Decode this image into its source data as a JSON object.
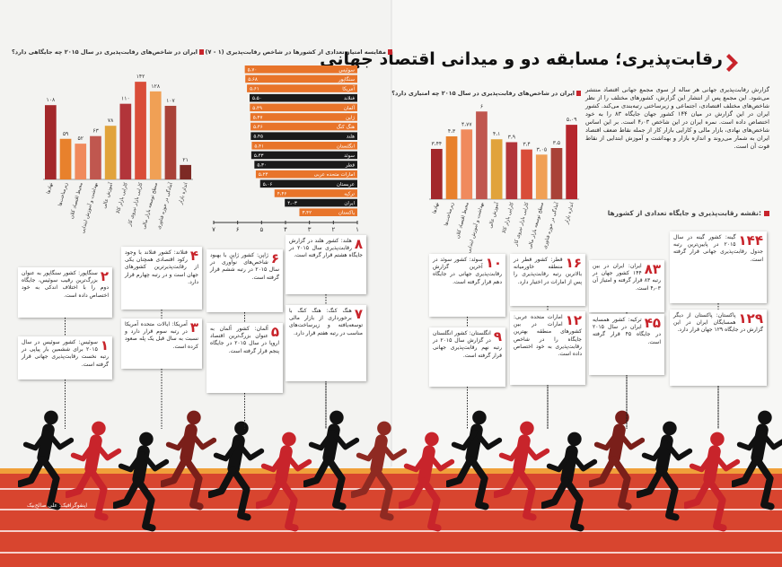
{
  "title": "رقابت‌پذیری؛ مسابقه دو و میدانی اقتصاد جهانی",
  "intro": "گزارش رقابت‌پذیری جهانی هر ساله از سوی مجمع جهانی اقتصاد منتشر می‌شود. این مجمع پس از انتشار این گزارش، کشورهای مختلف را از نظر شاخص‌های مختلف اقتصادی، اجتماعی و زیرساختی رتبه‌بندی می‌کند. کشور ایران در این گزارش در میان ۱۴۴ کشور جهان جایگاه ۸۳ را به خود اختصاص داده است. نمره ایران در این شاخص ۴٫۰۳ است. بر این اساس شاخص‌های نهادی، بازار مالی و کارایی بازار کار از جمله نقاط ضعف اقتصاد ایران به شمار می‌روند و اندازه بازار و بهداشت و آموزش ابتدایی از نقاط قوت آن است.",
  "map_heading": "نقشه رقابت‌پذیری و جایگاه تعدادی از کشورها:",
  "credit": "اینفوگرافیک: علی صالح‌بیک",
  "chart_data": [
    {
      "type": "bar",
      "title": "ایران در شاخص‌های رقابت‌پذیری در سال ۲۰۱۵ چه جایگاهی دارد؟",
      "categories": [
        "نهادها",
        "زیرساخت‌ها",
        "محیط اقتصاد کلان",
        "بهداشت و آموزش ابتدایی",
        "آموزش عالی",
        "کارایی بازار کالا",
        "کارایی بازار نیروی کار",
        "سطح توسعه بازار مالی",
        "آمادگی در حوزه فناوری",
        "اندازه بازار"
      ],
      "values": [
        108,
        59,
        52,
        63,
        78,
        110,
        142,
        128,
        107,
        21
      ],
      "value_labels": [
        "۱۰۸",
        "۵۹",
        "۵۲",
        "۶۳",
        "۷۸",
        "۱۱۰",
        "۱۴۲",
        "۱۲۸",
        "۱۰۷",
        "۲۱"
      ],
      "colors": [
        "#a3282b",
        "#e8812c",
        "#f08a5d",
        "#c0574f",
        "#e1a33b",
        "#b2353a",
        "#d94d39",
        "#f0a055",
        "#a94238",
        "#7d2a25"
      ],
      "ylim": [
        0,
        150
      ]
    },
    {
      "type": "hbar",
      "title": "مقایسه امتیاز تعدادی از کشورها در شاخص رقابت‌پذیری (۱ - ۷)",
      "categories": [
        "سوئیس",
        "سنگاپور",
        "آمریکا",
        "فنلاند",
        "آلمان",
        "ژاپن",
        "هنگ کنگ",
        "هلند",
        "انگلستان",
        "سوئد",
        "قطر",
        "امارات متحده عربی",
        "عربستان",
        "ترکیه",
        "ایران",
        "پاکستان"
      ],
      "values": [
        5.7,
        5.68,
        5.61,
        5.5,
        5.49,
        5.47,
        5.46,
        5.45,
        5.41,
        5.43,
        5.3,
        5.24,
        5.06,
        4.46,
        4.03,
        3.42
      ],
      "value_labels": [
        "۵،۷۰",
        "۵،۶۸",
        "۵،۶۱",
        "۵،۵۰",
        "۵،۴۹",
        "۵،۴۷",
        "۵،۴۶",
        "۵،۴۵",
        "۵،۴۱",
        "۵،۴۳",
        "۵،۳۰",
        "۵،۲۴",
        "۵،۰۶",
        "۴،۴۶",
        "۴،۰۳",
        "۳،۴۲"
      ],
      "colors": [
        "#e8742a",
        "#e8742a",
        "#e8742a",
        "#1a1a1a",
        "#e8742a",
        "#e8742a",
        "#e8742a",
        "#1a1a1a",
        "#e8742a",
        "#1a1a1a",
        "#1a1a1a",
        "#e8742a",
        "#1a1a1a",
        "#e8742a",
        "#1a1a1a",
        "#e8742a"
      ],
      "xlim": [
        1,
        7
      ],
      "xticks": [
        {
          "value": 7,
          "label": "۷"
        },
        {
          "value": 6,
          "label": "۶"
        },
        {
          "value": 5,
          "label": "۵"
        },
        {
          "value": 4,
          "label": "۴"
        },
        {
          "value": 3,
          "label": "۳"
        },
        {
          "value": 2,
          "label": "۲"
        },
        {
          "value": 1,
          "label": "۱"
        }
      ]
    },
    {
      "type": "bar",
      "title": "ایران در شاخص‌های رقابت‌پذیری در سال ۲۰۱۵ چه امتیازی دارد؟",
      "categories": [
        "نهادها",
        "زیرساخت‌ها",
        "محیط اقتصاد کلان",
        "بهداشت و آموزش ابتدایی",
        "آموزش عالی",
        "کارایی بازار کالا",
        "کارایی بازار نیروی کار",
        "سطح توسعه بازار مالی",
        "آمادگی در حوزه فناوری",
        "اندازه بازار"
      ],
      "values": [
        3.44,
        4.3,
        4.77,
        6,
        4.1,
        3.9,
        3.4,
        3.05,
        3.5,
        5.09
      ],
      "value_labels": [
        "۳،۴۴",
        "۴،۳",
        "۴،۷۷",
        "۶",
        "۴،۱",
        "۳،۹",
        "۳،۴",
        "۳،۰۵",
        "۳،۵",
        "۵،۰۹"
      ],
      "colors": [
        "#a3282b",
        "#e8812c",
        "#f08a5d",
        "#c0574f",
        "#e1a33b",
        "#b2353a",
        "#d94d39",
        "#f0a055",
        "#a94238",
        "#b5272d"
      ],
      "ylim": [
        0,
        7
      ]
    }
  ],
  "countries": [
    {
      "rank": "۱",
      "text": "سوئیس: کشور سوئیس در سال ۲۰۱۵ برای ششمین بار پیاپی در رتبه نخست رقابت‌پذیری جهانی قرار گرفته است."
    },
    {
      "rank": "۲",
      "text": "سنگاپور: کشور سنگاپور به عنوان بزرگ‌ترین رقیب سوئیس، جایگاه دوم را با اختلاف اندکی به خود اختصاص داده است."
    },
    {
      "rank": "۳",
      "text": "آمریکا: ایالات متحده آمریکا در رتبه سوم قرار دارد و نسبت به سال قبل یک پله صعود کرده است."
    },
    {
      "rank": "۴",
      "text": "فنلاند: کشور فنلاند با وجود رکود اقتصادی همچنان یکی از رقابت‌پذیرترین کشورهای جهان است و در رتبه چهارم قرار دارد."
    },
    {
      "rank": "۵",
      "text": "آلمان: کشور آلمان به عنوان بزرگ‌ترین اقتصاد اروپا در سال ۲۰۱۵ در جایگاه پنجم قرار گرفته است."
    },
    {
      "rank": "۶",
      "text": "ژاپن: کشور ژاپن با بهبود شاخص‌های نوآوری در سال ۲۰۱۵ در رتبه ششم قرار گرفته است."
    },
    {
      "rank": "۷",
      "text": "هنگ کنگ: هنگ کنگ با برخورداری از بازار مالی توسعه‌یافته و زیرساخت‌های مناسب در رتبه هفتم قرار دارد."
    },
    {
      "rank": "۸",
      "text": "هلند: کشور هلند در گزارش رقابت‌پذیری سال ۲۰۱۵ در جایگاه هشتم قرار گرفته است."
    },
    {
      "rank": "۹",
      "text": "انگلستان: کشور انگلستان در گزارش سال ۲۰۱۵ در رتبه نهم رقابت‌پذیری جهانی قرار گرفته است."
    },
    {
      "rank": "۱۰",
      "text": "سوئد: کشور سوئد در آخرین گزارش رقابت‌پذیری جهانی در جایگاه دهم قرار گرفته است."
    },
    {
      "rank": "۱۶",
      "text": "قطر: کشور قطر در منطقه خاورمیانه بالاترین رتبه رقابت‌پذیری را پس از امارات در اختیار دارد."
    },
    {
      "rank": "۱۲",
      "text": "امارات متحده عربی: امارات در بین کشورهای منطقه بهترین جایگاه را در شاخص رقابت‌پذیری به خود اختصاص داده است."
    },
    {
      "rank": "۸۳",
      "text": "ایران: ایران در بین ۱۴۴ کشور جهان در رتبه ۸۳ قرار گرفته و امتیاز آن ۴٫۰۳ است."
    },
    {
      "rank": "۴۵",
      "text": "ترکیه: کشور همسایه ایران در سال ۲۰۱۵ در جایگاه ۴۵ قرار گرفته است."
    },
    {
      "rank": "۱۴۴",
      "text": "گینه: کشور گینه در سال ۲۰۱۵ در پایین‌ترین رتبه جدول رقابت‌پذیری جهانی قرار گرفته است."
    },
    {
      "rank": "۱۲۹",
      "text": "پاکستان: پاکستان از دیگر همسایگان ایران در این گزارش در جایگاه ۱۲۹ جهان قرار دارد."
    }
  ]
}
